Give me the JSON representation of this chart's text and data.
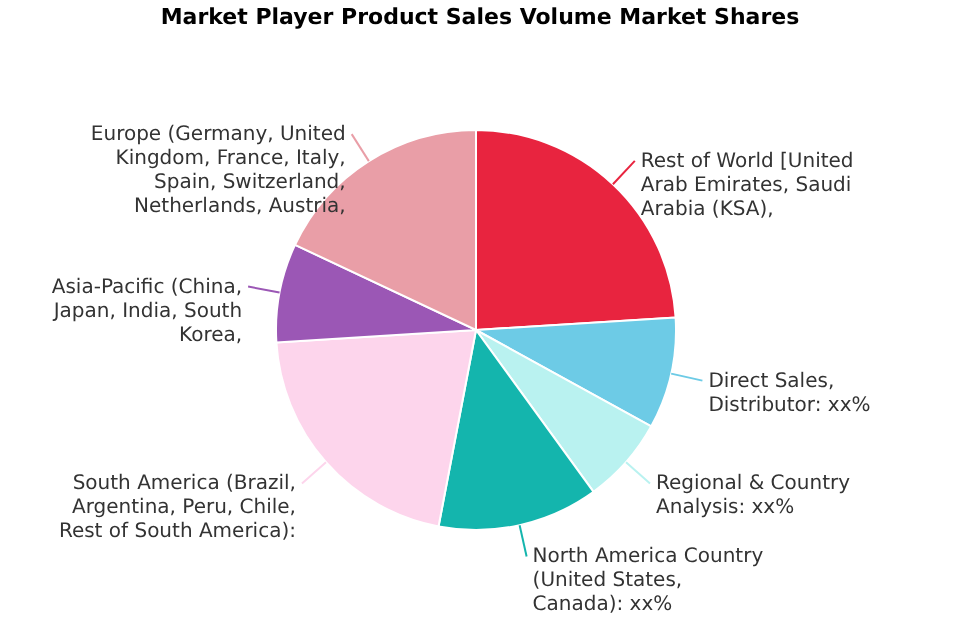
{
  "chart_data": {
    "type": "pie",
    "title": "Market Player Product Sales Volume Market Shares",
    "categories": [
      "Rest of World [United Arab Emirates, Saudi Arabia (KSA)",
      "Direct Sales, Distributor",
      "Regional & Country Analysis",
      "North America Country (United States, Canada)",
      "South America (Brazil, Argentina, Peru, Chile, Rest of South America)",
      "Asia-Pacific (China, Japan, India, South Korea",
      "Europe (Germany, United Kingdom, France, Italy, Spain, Switzerland, Netherlands, Austria"
    ],
    "values": [
      24,
      9,
      7,
      13,
      21,
      8,
      18
    ],
    "value_labels": [
      ",",
      ": xx%",
      ": xx%",
      ": xx%",
      ":",
      ",",
      ","
    ],
    "colors": [
      "#e8243f",
      "#6dcbe6",
      "#b9f2f0",
      "#14b5ad",
      "#fdd5ec",
      "#9b57b5",
      "#e99ea7"
    ]
  }
}
